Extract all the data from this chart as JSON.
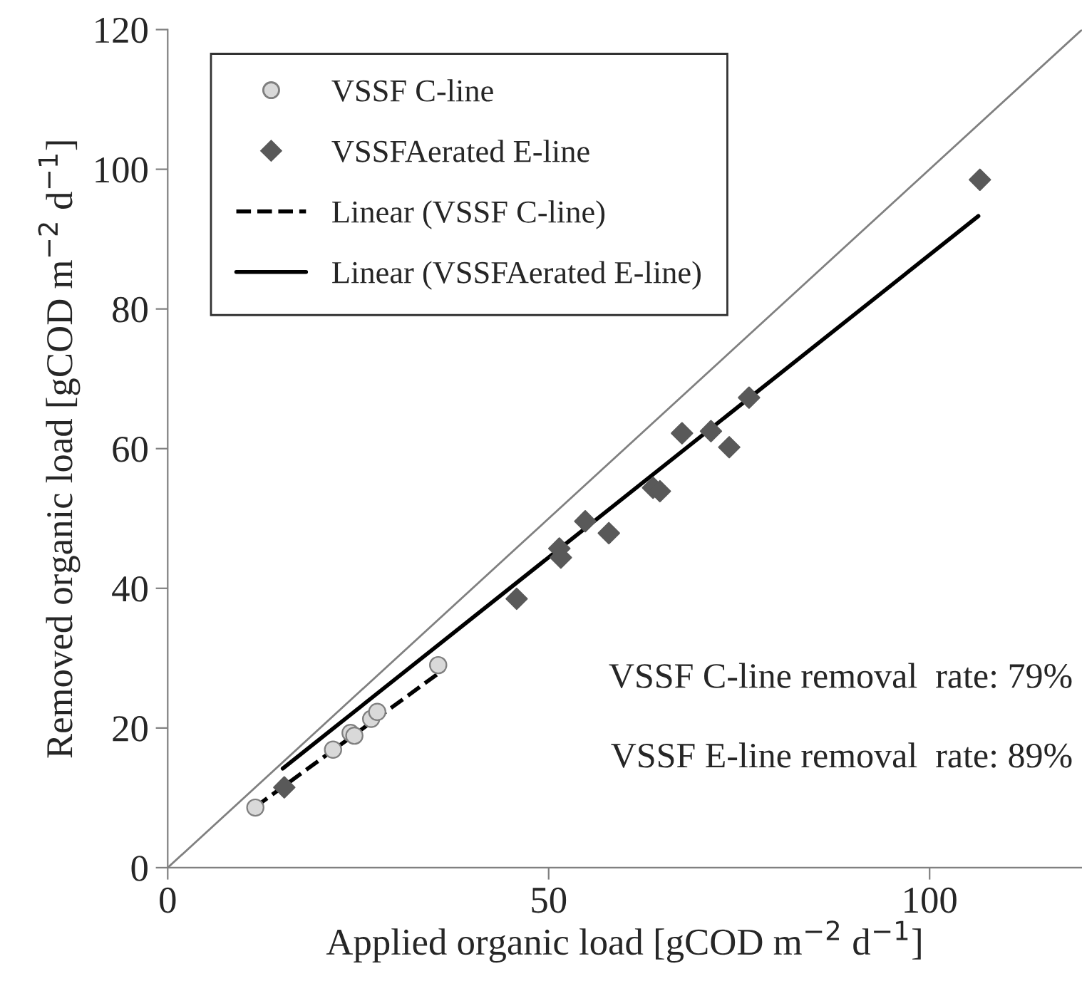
{
  "chart_data": {
    "type": "scatter",
    "xlabel": "Applied organic load [gCOD m$^{−2}$ d$^{−1}$]",
    "ylabel": "Removed organic load [gCOD m$^{−2}$ d$^{−1}$]",
    "xlim": [
      0,
      120
    ],
    "ylim": [
      0,
      120
    ],
    "xticks": [
      0,
      50,
      100
    ],
    "yticks": [
      0,
      20,
      40,
      60,
      80,
      100,
      120
    ],
    "grid": false,
    "legend": "top left",
    "annotations": [
      "VSSF C-line removal  rate: 79%",
      "VSSF E-line removal  rate: 89%"
    ],
    "series": [
      {
        "type": "line",
        "color": "#808080",
        "line_style": "solid",
        "x": [
          0,
          120
        ],
        "values": [
          0,
          120
        ]
      },
      {
        "name": "VSSF C-line",
        "color": "#d9d9d9",
        "marker": "circle",
        "x": [
          11.5,
          21.7,
          24.0,
          24.5,
          26.7,
          27.5,
          35.5
        ],
        "values": [
          8.6,
          16.9,
          19.3,
          18.9,
          21.3,
          22.3,
          29.0
        ]
      },
      {
        "name": "VSSFAerated E-line",
        "color": "#595959",
        "marker": "diamond",
        "x": [
          15.3,
          45.8,
          51.4,
          51.6,
          54.8,
          57.9,
          63.7,
          64.6,
          67.5,
          71.3,
          73.7,
          76.3,
          106.6
        ],
        "values": [
          11.5,
          38.5,
          45.7,
          44.4,
          49.6,
          47.9,
          54.4,
          53.9,
          62.2,
          62.5,
          60.2,
          67.3,
          98.5
        ]
      },
      {
        "type": "line",
        "name": "Linear (VSSF C-line)",
        "color": "#000000",
        "line_style": "dashed",
        "x": [
          11.5,
          35.5
        ],
        "values": [
          8.7,
          27.8
        ]
      },
      {
        "type": "line",
        "name": "Linear (VSSFAerated E-line)",
        "color": "#000000",
        "line_style": "solid",
        "x": [
          15.1,
          106.4
        ],
        "values": [
          14.2,
          93.3
        ]
      }
    ]
  }
}
